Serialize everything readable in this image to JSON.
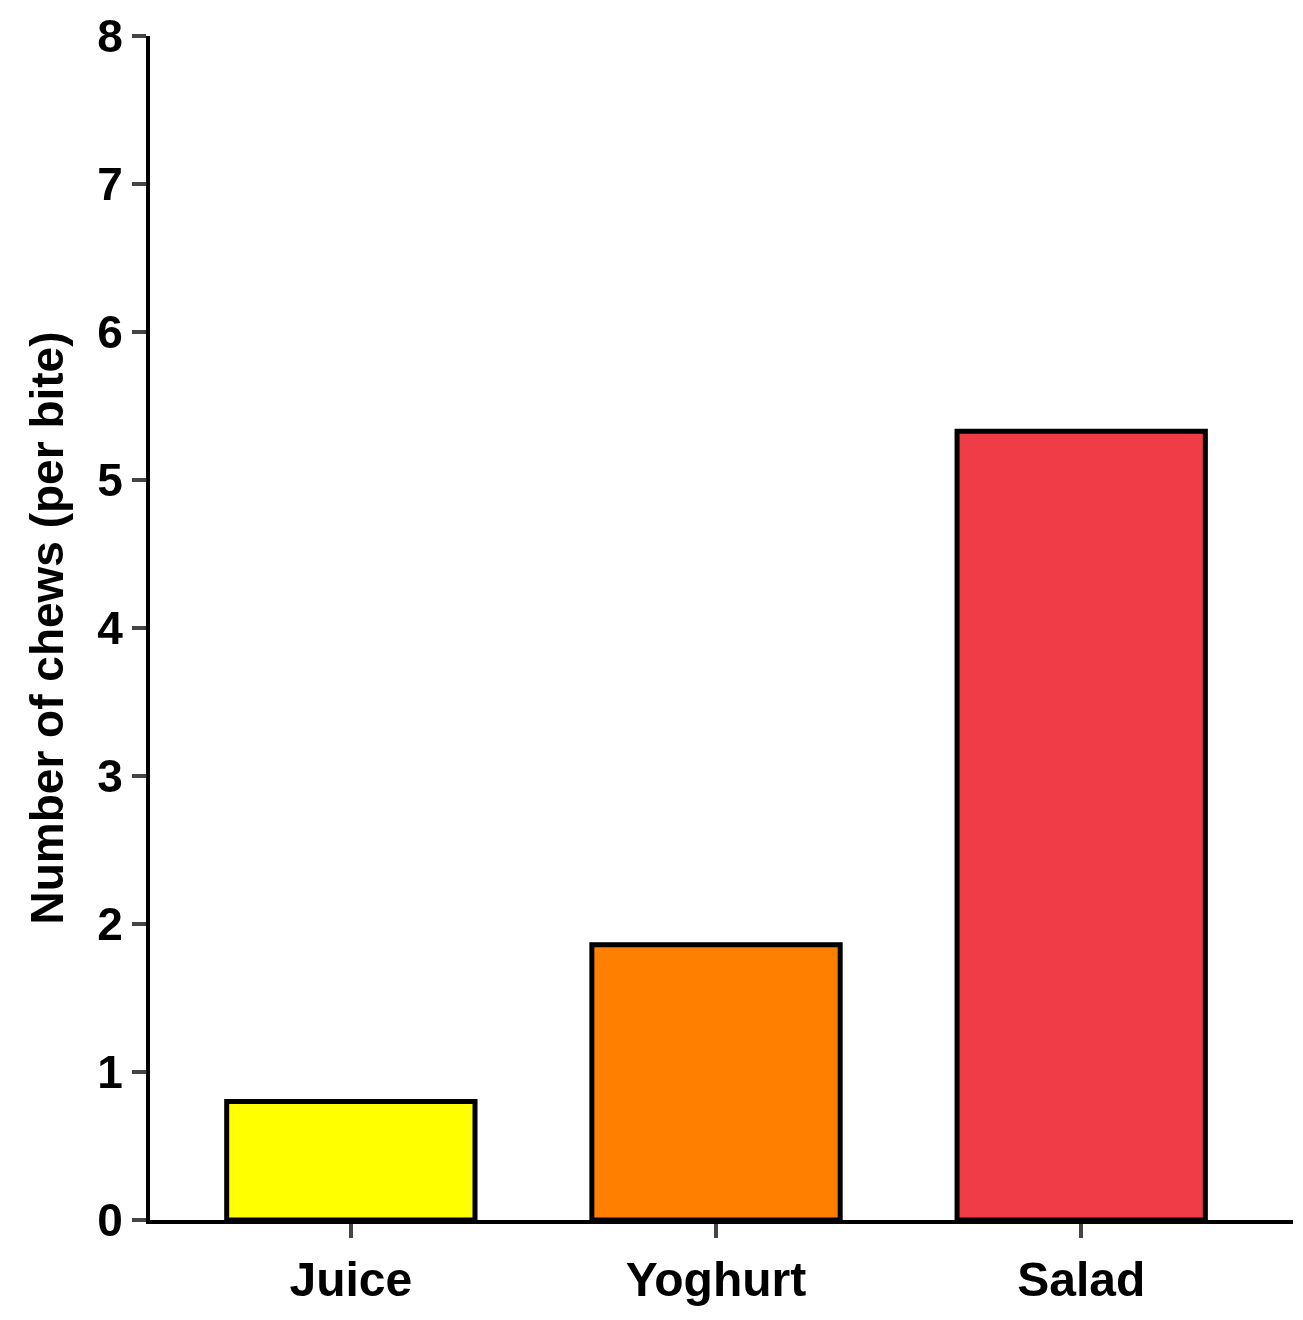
{
  "chart_data": {
    "type": "bar",
    "ylabel": "Number of chews (per bite)",
    "categories": [
      "Juice",
      "Yoghurt",
      "Salad"
    ],
    "values": [
      0.8,
      1.86,
      5.33
    ],
    "colors": [
      "#ffff00",
      "#ff8000",
      "#f03c46"
    ],
    "ylim": [
      0,
      8
    ],
    "yticks": [
      0,
      1,
      2,
      3,
      4,
      5,
      6,
      7,
      8
    ]
  }
}
